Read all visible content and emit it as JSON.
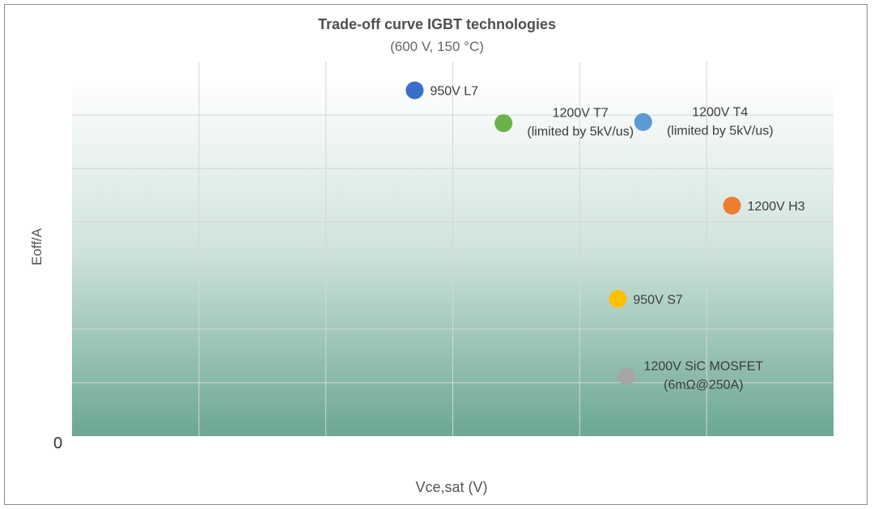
{
  "chart_data": {
    "type": "scatter",
    "title": "Trade-off curve IGBT technologies",
    "subtitle": "(600 V, 150 °C)",
    "xlabel": "Vce,sat (V)",
    "ylabel": "Eoff/A",
    "origin_label": "0",
    "xlim": [
      0,
      6
    ],
    "ylim": [
      0,
      6.5
    ],
    "grid": true,
    "points": [
      {
        "name": "950V L7",
        "label_lines": [
          "950V L7"
        ],
        "x": 2.7,
        "y": 6.0,
        "color": "#3a6fc9",
        "label_side": "right"
      },
      {
        "name": "1200V T7",
        "label_lines": [
          "1200V T7",
          "(limited by 5kV/us)"
        ],
        "x": 3.4,
        "y": 5.43,
        "color": "#6ab34a",
        "label_side": "right"
      },
      {
        "name": "1200V T4",
        "label_lines": [
          "1200V T4",
          "(limited by 5kV/us)"
        ],
        "x": 4.5,
        "y": 5.45,
        "color": "#5b9bd5",
        "label_side": "right"
      },
      {
        "name": "1200V H3",
        "label_lines": [
          "1200V H3"
        ],
        "x": 5.2,
        "y": 4.0,
        "color": "#ed7d31",
        "label_side": "right"
      },
      {
        "name": "950V S7",
        "label_lines": [
          "950V S7"
        ],
        "x": 4.3,
        "y": 2.38,
        "color": "#ffc000",
        "label_side": "right"
      },
      {
        "name": "1200V SiC MOSFET",
        "label_lines": [
          "1200V SiC MOSFET",
          "(6mΩ@250A)"
        ],
        "x": 4.37,
        "y": 1.04,
        "color": "#a5a5a5",
        "label_side": "right"
      }
    ],
    "colors": {
      "gradient_top": "#ffffff",
      "gradient_bottom": "#6fa996",
      "grid": "#d6d6d6"
    }
  }
}
